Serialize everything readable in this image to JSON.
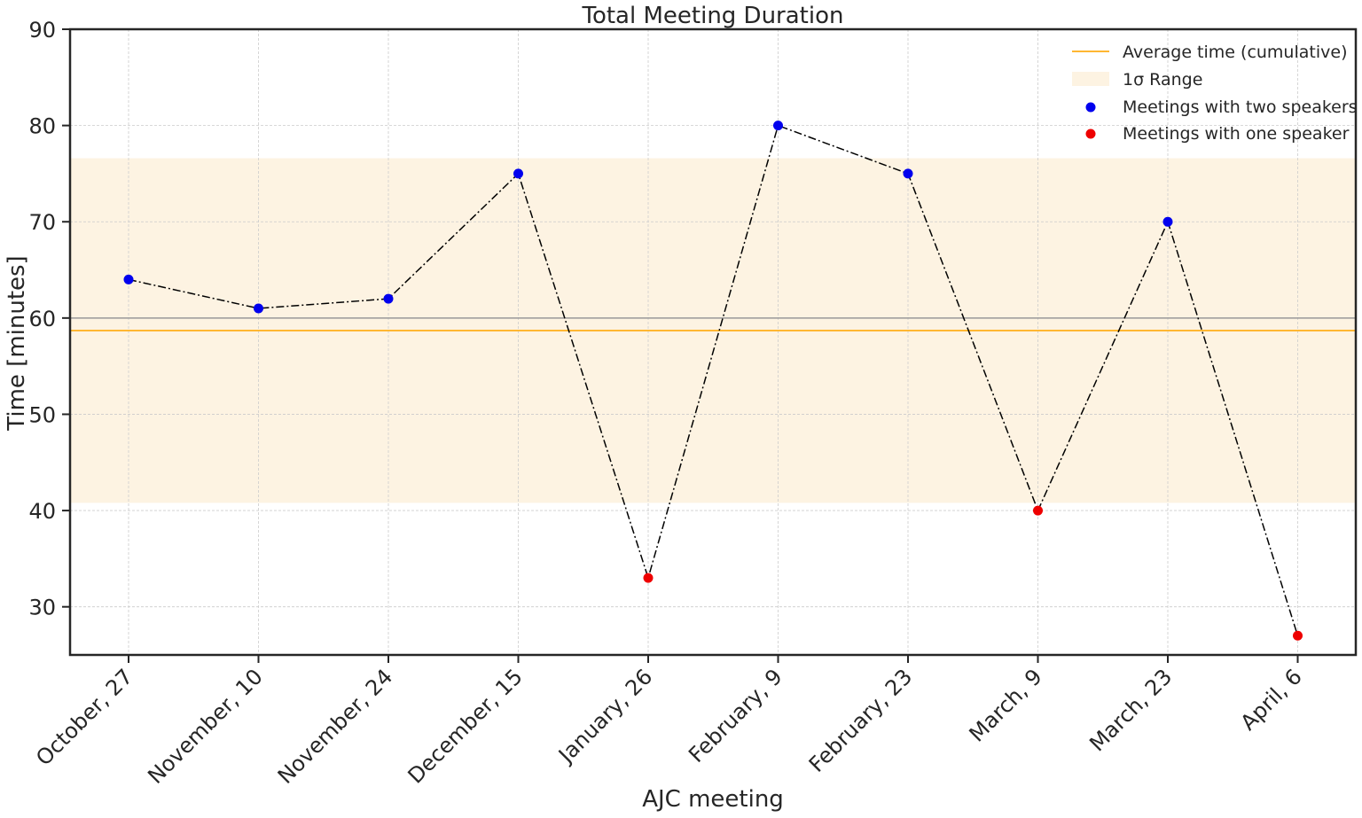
{
  "chart_data": {
    "type": "line",
    "title": "Total Meeting Duration",
    "xlabel": "AJC meeting",
    "ylabel": "Time [minutes]",
    "categories": [
      "October, 27",
      "November, 10",
      "November, 24",
      "December, 15",
      "January, 26",
      "February, 9",
      "February, 23",
      "March, 9",
      "March, 23",
      "April, 6"
    ],
    "values": [
      64,
      61,
      62,
      75,
      33,
      80,
      75,
      40,
      70,
      27
    ],
    "speakers": [
      2,
      2,
      2,
      2,
      1,
      2,
      2,
      1,
      2,
      1
    ],
    "ylim": [
      25,
      90
    ],
    "yticks": [
      30,
      40,
      50,
      60,
      70,
      80,
      90
    ],
    "reference_line": 60,
    "average": 58.7,
    "sigma_range": [
      40.8,
      76.6
    ],
    "grid": true,
    "legend_position": "top-right",
    "legend": [
      {
        "label": "Average time (cumulative)",
        "kind": "line"
      },
      {
        "label": "1σ Range",
        "kind": "patch"
      },
      {
        "label": "Meetings with two speakers",
        "kind": "point"
      },
      {
        "label": "Meetings with one speaker",
        "kind": "point"
      }
    ],
    "colors": {
      "average": "#ffb732",
      "sigma_band": "#fdf3e2",
      "two_speakers": "#0000ee",
      "one_speaker": "#ee0000",
      "connector": "#000000",
      "reference": "#999999",
      "grid": "#cccccc",
      "axis": "#262626"
    }
  }
}
